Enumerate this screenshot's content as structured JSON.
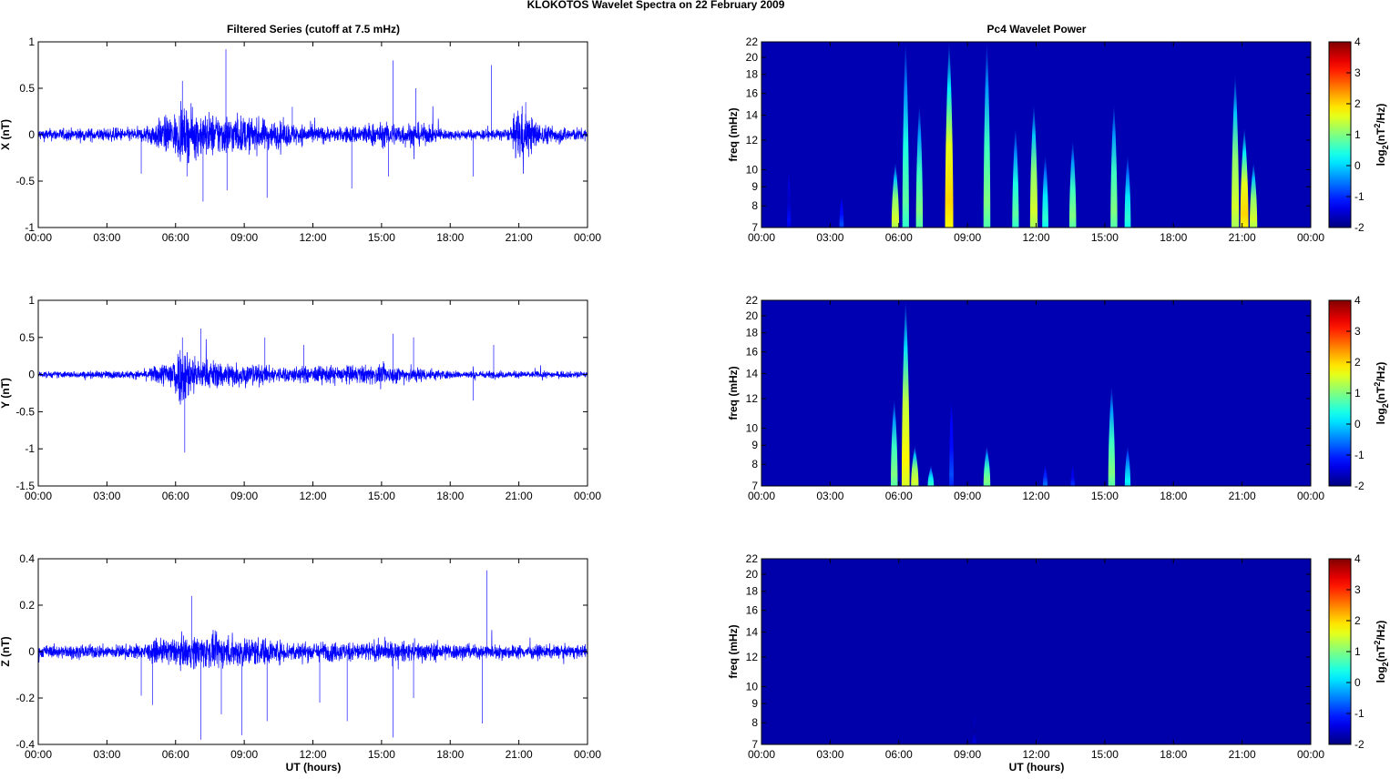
{
  "chart_data": {
    "title": "KLOKOTOS Wavelet Spectra on 22 February  2009",
    "left_title": "Filtered Series (cutoff at 7.5 mHz)",
    "right_title": "Pc4 Wavelet Power",
    "xlabel": "UT (hours)",
    "xticks": [
      "00:00",
      "03:00",
      "06:00",
      "09:00",
      "12:00",
      "15:00",
      "18:00",
      "21:00",
      "00:00"
    ],
    "xlim": [
      0,
      24
    ],
    "series": [
      {
        "type": "line",
        "name": "X",
        "ylabel": "X (nT)",
        "ylim": [
          -1,
          1
        ],
        "yticks": [
          1,
          0.5,
          0,
          -0.5,
          -1
        ],
        "color": "#0000ff",
        "envelope": [
          [
            0,
            0.06
          ],
          [
            4.5,
            0.07
          ],
          [
            5.2,
            0.15
          ],
          [
            6.3,
            0.25
          ],
          [
            8.5,
            0.2
          ],
          [
            11,
            0.12
          ],
          [
            13,
            0.07
          ],
          [
            14.5,
            0.12
          ],
          [
            16.5,
            0.12
          ],
          [
            18,
            0.05
          ],
          [
            20.6,
            0.06
          ],
          [
            21,
            0.3
          ],
          [
            22,
            0.1
          ],
          [
            24,
            0.06
          ]
        ],
        "spikes": [
          [
            4.5,
            -0.42
          ],
          [
            6.3,
            0.58
          ],
          [
            6.5,
            -0.45
          ],
          [
            7.2,
            -0.72
          ],
          [
            8.2,
            0.92
          ],
          [
            8.25,
            -0.6
          ],
          [
            10.0,
            -0.68
          ],
          [
            11.1,
            0.3
          ],
          [
            13.7,
            -0.58
          ],
          [
            15.5,
            0.8
          ],
          [
            15.3,
            -0.45
          ],
          [
            16.5,
            0.5
          ],
          [
            19.0,
            -0.45
          ],
          [
            19.8,
            0.75
          ],
          [
            21.3,
            0.35
          ]
        ]
      },
      {
        "type": "line",
        "name": "Y",
        "ylabel": "Y (nT)",
        "ylim": [
          -1.5,
          1
        ],
        "yticks": [
          1,
          0.5,
          0,
          -0.5,
          -1,
          -1.5
        ],
        "color": "#0000ff",
        "envelope": [
          [
            0,
            0.04
          ],
          [
            4.5,
            0.05
          ],
          [
            5.5,
            0.15
          ],
          [
            6.3,
            0.4
          ],
          [
            7,
            0.2
          ],
          [
            9,
            0.15
          ],
          [
            10.5,
            0.1
          ],
          [
            14.5,
            0.12
          ],
          [
            16.5,
            0.1
          ],
          [
            18,
            0.05
          ],
          [
            24,
            0.04
          ]
        ],
        "spikes": [
          [
            6.4,
            -1.05
          ],
          [
            6.3,
            0.5
          ],
          [
            7.1,
            0.62
          ],
          [
            9.9,
            0.5
          ],
          [
            11.6,
            0.4
          ],
          [
            15.5,
            0.55
          ],
          [
            16.4,
            0.5
          ],
          [
            19.0,
            -0.35
          ],
          [
            19.9,
            0.4
          ]
        ]
      },
      {
        "type": "line",
        "name": "Z",
        "ylabel": "Z (nT)",
        "ylim": [
          -0.4,
          0.4
        ],
        "yticks": [
          0.4,
          0.2,
          0,
          -0.2,
          -0.4
        ],
        "color": "#0000ff",
        "envelope": [
          [
            0,
            0.025
          ],
          [
            4.5,
            0.03
          ],
          [
            5.5,
            0.05
          ],
          [
            7,
            0.07
          ],
          [
            9.5,
            0.06
          ],
          [
            11,
            0.04
          ],
          [
            14,
            0.04
          ],
          [
            16.5,
            0.04
          ],
          [
            19,
            0.03
          ],
          [
            24,
            0.025
          ]
        ],
        "spikes": [
          [
            4.5,
            -0.19
          ],
          [
            5.0,
            -0.23
          ],
          [
            6.7,
            0.24
          ],
          [
            7.1,
            -0.38
          ],
          [
            8.0,
            -0.27
          ],
          [
            8.9,
            -0.36
          ],
          [
            10.0,
            -0.3
          ],
          [
            12.3,
            -0.22
          ],
          [
            13.5,
            -0.3
          ],
          [
            15.5,
            -0.37
          ],
          [
            16.4,
            -0.2
          ],
          [
            19.4,
            -0.31
          ],
          [
            19.6,
            0.35
          ]
        ]
      }
    ],
    "spectra": [
      {
        "type": "heatmap",
        "ylabel": "freq (mHz)",
        "ylim": [
          7,
          22
        ],
        "yticks": [
          22,
          20,
          18,
          16,
          14,
          12,
          10,
          9,
          8,
          7
        ],
        "background_power": -1.7,
        "bursts": [
          [
            5.85,
            10.5,
            1.5
          ],
          [
            6.3,
            22,
            0.8
          ],
          [
            6.9,
            15,
            1
          ],
          [
            8.2,
            22,
            2
          ],
          [
            9.85,
            22,
            1
          ],
          [
            11.1,
            13,
            0.8
          ],
          [
            11.9,
            15,
            1.5
          ],
          [
            12.4,
            11,
            0.5
          ],
          [
            13.6,
            12,
            1
          ],
          [
            15.4,
            15,
            1
          ],
          [
            16,
            11,
            0.5
          ],
          [
            20.7,
            18,
            1.5
          ],
          [
            21.1,
            13,
            2
          ],
          [
            21.5,
            10.5,
            1.5
          ],
          [
            3.5,
            8.5,
            -0.8
          ],
          [
            1.2,
            10,
            -1.2
          ]
        ]
      },
      {
        "type": "heatmap",
        "ylabel": "freq (mHz)",
        "ylim": [
          7,
          22
        ],
        "yticks": [
          22,
          20,
          18,
          16,
          14,
          12,
          10,
          9,
          8,
          7
        ],
        "background_power": -1.7,
        "bursts": [
          [
            5.8,
            12,
            1
          ],
          [
            6.3,
            22,
            1.8
          ],
          [
            6.7,
            9,
            1.5
          ],
          [
            7.4,
            8,
            0.5
          ],
          [
            8.3,
            12,
            -0.8
          ],
          [
            9.85,
            9,
            1
          ],
          [
            12.4,
            8,
            -0.6
          ],
          [
            15.3,
            13,
            1
          ],
          [
            16,
            9,
            0.2
          ],
          [
            13.6,
            8,
            -1
          ]
        ]
      },
      {
        "type": "heatmap",
        "ylabel": "freq (mHz)",
        "ylim": [
          7,
          22
        ],
        "yticks": [
          22,
          20,
          18,
          16,
          14,
          12,
          10,
          9,
          8,
          7
        ],
        "background_power": -1.75,
        "bursts": [
          [
            9.3,
            8.5,
            -1.45
          ]
        ]
      }
    ],
    "colorbar": {
      "label": "log2(nT2/Hz)",
      "range": [
        -2,
        4
      ],
      "ticks": [
        4,
        3,
        2,
        1,
        0,
        -1,
        -2
      ],
      "colormap": "jet"
    }
  }
}
